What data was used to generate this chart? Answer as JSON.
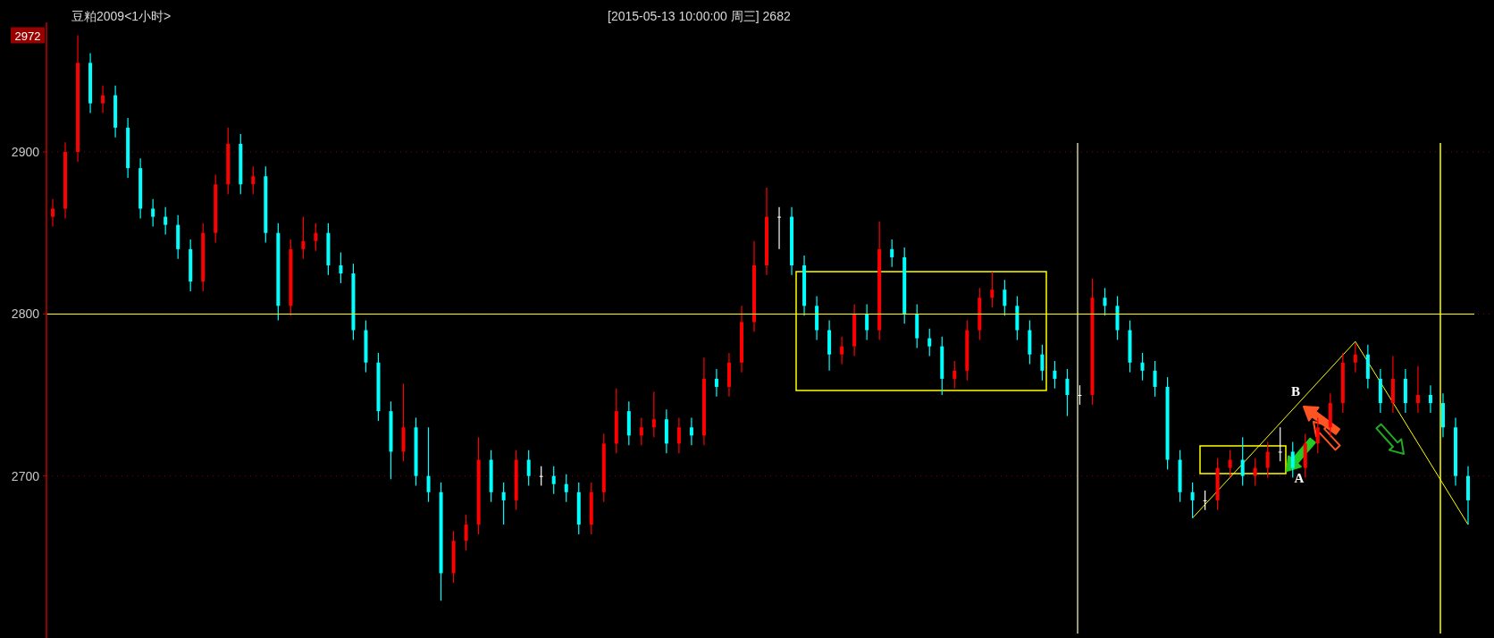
{
  "chart_data": {
    "type": "candlestick",
    "title": "豆粕2009<1小时>",
    "subtitle": "[2015-05-13  10:00:00 周三]   2682",
    "categories": [
      null,
      null,
      null,
      null,
      null,
      null,
      null,
      null,
      null,
      null,
      null,
      null,
      null,
      null,
      null,
      null,
      null,
      null,
      null,
      null,
      null,
      null,
      null,
      null,
      null,
      null,
      null,
      null,
      null,
      null,
      null,
      null,
      null,
      null,
      null,
      null,
      null,
      null,
      null,
      null,
      null,
      null,
      null,
      null,
      null,
      null,
      null,
      null,
      null,
      null,
      null,
      null,
      null,
      null,
      null,
      null,
      null,
      null,
      null,
      null,
      null,
      null,
      null,
      null,
      null,
      null,
      null,
      null,
      null,
      null,
      null,
      null,
      null,
      null,
      null,
      null,
      null,
      null,
      null,
      null,
      null,
      null,
      null,
      null,
      null,
      null,
      null,
      null,
      null,
      null,
      null,
      null,
      null,
      null,
      null,
      null,
      null,
      null,
      null,
      null,
      null,
      null,
      null,
      null,
      null,
      null,
      null,
      null,
      null,
      null,
      null,
      null,
      null,
      null
    ],
    "ohlc": [
      [
        2860,
        2871,
        2854,
        2865
      ],
      [
        2865,
        2906,
        2859,
        2900
      ],
      [
        2900,
        2972,
        2894,
        2955
      ],
      [
        2955,
        2961,
        2924,
        2930
      ],
      [
        2930,
        2941,
        2924,
        2935
      ],
      [
        2935,
        2941,
        2909,
        2915
      ],
      [
        2915,
        2921,
        2884,
        2890
      ],
      [
        2890,
        2896,
        2859,
        2865
      ],
      [
        2865,
        2871,
        2854,
        2860
      ],
      [
        2860,
        2866,
        2849,
        2855
      ],
      [
        2855,
        2861,
        2834,
        2840
      ],
      [
        2840,
        2846,
        2814,
        2820
      ],
      [
        2820,
        2856,
        2814,
        2850
      ],
      [
        2850,
        2886,
        2844,
        2880
      ],
      [
        2880,
        2915,
        2874,
        2905
      ],
      [
        2905,
        2911,
        2874,
        2880
      ],
      [
        2880,
        2891,
        2874,
        2885
      ],
      [
        2885,
        2891,
        2844,
        2850
      ],
      [
        2850,
        2856,
        2796,
        2805
      ],
      [
        2805,
        2846,
        2799,
        2840
      ],
      [
        2840,
        2860,
        2834,
        2845
      ],
      [
        2845,
        2856,
        2839,
        2850
      ],
      [
        2850,
        2856,
        2824,
        2830
      ],
      [
        2830,
        2838,
        2819,
        2825
      ],
      [
        2825,
        2831,
        2784,
        2790
      ],
      [
        2790,
        2796,
        2764,
        2770
      ],
      [
        2770,
        2776,
        2734,
        2740
      ],
      [
        2740,
        2746,
        2698,
        2715
      ],
      [
        2715,
        2757,
        2709,
        2730
      ],
      [
        2730,
        2736,
        2694,
        2700
      ],
      [
        2700,
        2730,
        2684,
        2690
      ],
      [
        2690,
        2696,
        2623,
        2640
      ],
      [
        2640,
        2666,
        2634,
        2660
      ],
      [
        2660,
        2676,
        2654,
        2670
      ],
      [
        2670,
        2724,
        2664,
        2710
      ],
      [
        2710,
        2716,
        2684,
        2690
      ],
      [
        2690,
        2696,
        2670,
        2685
      ],
      [
        2685,
        2716,
        2679,
        2710
      ],
      [
        2710,
        2716,
        2694,
        2700
      ],
      [
        2700,
        2706,
        2694,
        2700
      ],
      [
        2700,
        2706,
        2689,
        2695
      ],
      [
        2695,
        2701,
        2684,
        2690
      ],
      [
        2690,
        2696,
        2664,
        2670
      ],
      [
        2670,
        2696,
        2664,
        2690
      ],
      [
        2690,
        2726,
        2684,
        2720
      ],
      [
        2720,
        2754,
        2714,
        2740
      ],
      [
        2740,
        2746,
        2719,
        2725
      ],
      [
        2725,
        2736,
        2719,
        2730
      ],
      [
        2730,
        2752,
        2724,
        2735
      ],
      [
        2735,
        2741,
        2714,
        2720
      ],
      [
        2720,
        2736,
        2714,
        2730
      ],
      [
        2730,
        2736,
        2719,
        2725
      ],
      [
        2725,
        2773,
        2719,
        2760
      ],
      [
        2760,
        2766,
        2749,
        2755
      ],
      [
        2755,
        2776,
        2749,
        2770
      ],
      [
        2770,
        2805,
        2764,
        2795
      ],
      [
        2795,
        2845,
        2789,
        2830
      ],
      [
        2830,
        2878,
        2824,
        2860
      ],
      [
        2860,
        2866,
        2840,
        2860
      ],
      [
        2860,
        2866,
        2824,
        2830
      ],
      [
        2830,
        2836,
        2799,
        2805
      ],
      [
        2805,
        2811,
        2784,
        2790
      ],
      [
        2790,
        2796,
        2765,
        2775
      ],
      [
        2775,
        2786,
        2769,
        2780
      ],
      [
        2780,
        2806,
        2774,
        2800
      ],
      [
        2800,
        2806,
        2784,
        2790
      ],
      [
        2790,
        2857,
        2784,
        2840
      ],
      [
        2840,
        2846,
        2829,
        2835
      ],
      [
        2835,
        2841,
        2794,
        2800
      ],
      [
        2800,
        2806,
        2779,
        2785
      ],
      [
        2785,
        2791,
        2774,
        2780
      ],
      [
        2780,
        2786,
        2750,
        2760
      ],
      [
        2760,
        2771,
        2754,
        2765
      ],
      [
        2765,
        2796,
        2759,
        2790
      ],
      [
        2790,
        2816,
        2784,
        2810
      ],
      [
        2810,
        2826,
        2804,
        2815
      ],
      [
        2815,
        2821,
        2799,
        2805
      ],
      [
        2805,
        2811,
        2784,
        2790
      ],
      [
        2790,
        2796,
        2769,
        2775
      ],
      [
        2775,
        2781,
        2759,
        2765
      ],
      [
        2765,
        2771,
        2754,
        2760
      ],
      [
        2760,
        2766,
        2737,
        2750
      ],
      [
        2750,
        2756,
        2744,
        2750
      ],
      [
        2750,
        2822,
        2744,
        2810
      ],
      [
        2810,
        2816,
        2799,
        2805
      ],
      [
        2805,
        2811,
        2784,
        2790
      ],
      [
        2790,
        2796,
        2764,
        2770
      ],
      [
        2770,
        2776,
        2759,
        2765
      ],
      [
        2765,
        2771,
        2749,
        2755
      ],
      [
        2755,
        2761,
        2704,
        2710
      ],
      [
        2710,
        2716,
        2684,
        2690
      ],
      [
        2690,
        2696,
        2674,
        2685
      ],
      [
        2685,
        2691,
        2679,
        2685
      ],
      [
        2685,
        2711,
        2679,
        2705
      ],
      [
        2705,
        2716,
        2699,
        2710
      ],
      [
        2710,
        2724,
        2694,
        2700
      ],
      [
        2700,
        2711,
        2694,
        2705
      ],
      [
        2705,
        2721,
        2699,
        2715
      ],
      [
        2715,
        2730,
        2709,
        2715
      ],
      [
        2715,
        2721,
        2699,
        2705
      ],
      [
        2705,
        2726,
        2699,
        2720
      ],
      [
        2720,
        2736,
        2714,
        2730
      ],
      [
        2730,
        2751,
        2724,
        2745
      ],
      [
        2745,
        2776,
        2739,
        2770
      ],
      [
        2770,
        2782,
        2764,
        2775
      ],
      [
        2775,
        2781,
        2754,
        2760
      ],
      [
        2760,
        2766,
        2739,
        2745
      ],
      [
        2745,
        2774,
        2739,
        2760
      ],
      [
        2760,
        2766,
        2739,
        2745
      ],
      [
        2745,
        2768,
        2739,
        2750
      ],
      [
        2750,
        2756,
        2739,
        2745
      ],
      [
        2745,
        2751,
        2724,
        2730
      ],
      [
        2730,
        2736,
        2694,
        2700
      ],
      [
        2700,
        2706,
        2670,
        2685
      ]
    ],
    "ylim": [
      2600,
      2980
    ],
    "yticks": [
      2700,
      2800,
      2900
    ],
    "grid": "y",
    "tick_labels": "y",
    "ref_lines": [
      {
        "axis": "y",
        "value": 2800,
        "color": "#ffff00"
      }
    ],
    "series": [
      {
        "type": "line",
        "color": "#ffff00",
        "values": [
          null,
          null,
          null,
          null,
          null,
          null,
          null,
          null,
          null,
          null,
          null,
          null,
          null,
          null,
          null,
          null,
          null,
          null,
          null,
          null,
          null,
          null,
          null,
          null,
          null,
          null,
          null,
          null,
          null,
          null,
          null,
          null,
          null,
          null,
          null,
          null,
          null,
          null,
          null,
          null,
          null,
          null,
          null,
          null,
          null,
          null,
          null,
          null,
          null,
          null,
          null,
          null,
          null,
          null,
          null,
          null,
          null,
          null,
          null,
          null,
          null,
          null,
          null,
          null,
          null,
          null,
          null,
          null,
          null,
          null,
          null,
          null,
          null,
          null,
          null,
          null,
          null,
          null,
          null,
          null,
          null,
          null,
          null,
          null,
          null,
          null,
          null,
          null,
          null,
          null,
          null,
          2674,
          null,
          null,
          null,
          null,
          null,
          null,
          null,
          null,
          null,
          null,
          null,
          null,
          2783,
          null,
          null,
          null,
          null,
          null,
          null,
          null,
          null,
          2670
        ]
      }
    ],
    "annotations": [
      "A",
      "B",
      {
        "text": "2972",
        "y": 2972
      }
    ]
  }
}
